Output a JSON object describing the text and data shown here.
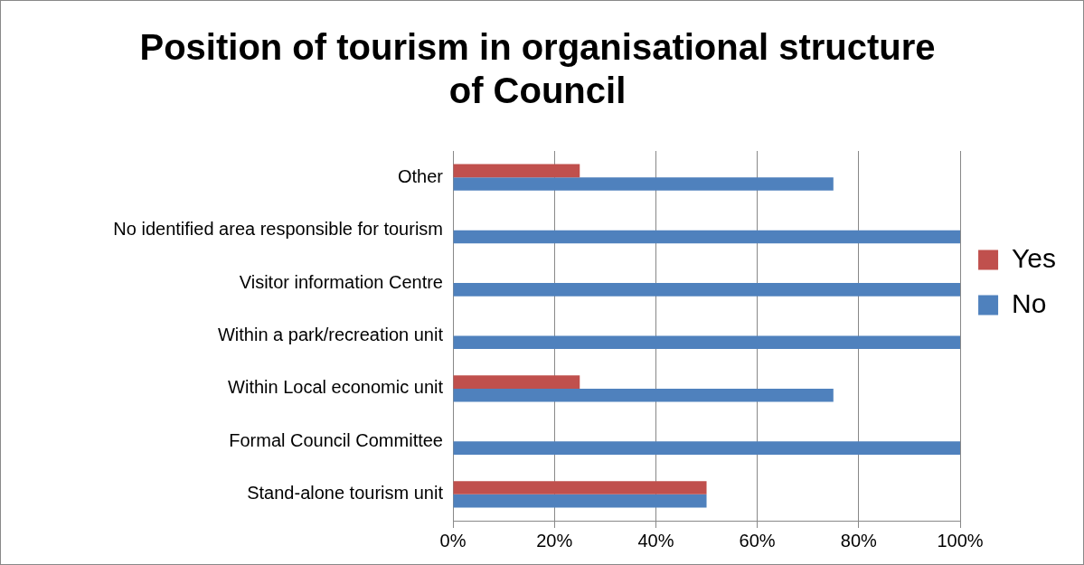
{
  "chart_data": {
    "type": "bar",
    "orientation": "horizontal",
    "title": "Position of tourism in organisational structure of Council",
    "categories": [
      "Other",
      "No identified area responsible for tourism",
      "Visitor information Centre",
      "Within a park/recreation unit",
      "Within Local economic unit",
      "Formal Council Committee",
      "Stand-alone tourism unit"
    ],
    "series": [
      {
        "name": "Yes",
        "color": "#c0504d",
        "values": [
          25,
          0,
          0,
          0,
          25,
          0,
          50
        ]
      },
      {
        "name": "No",
        "color": "#4f81bd",
        "values": [
          75,
          100,
          100,
          100,
          75,
          100,
          50
        ]
      }
    ],
    "xlim": [
      0,
      100
    ],
    "xticks": [
      {
        "value": 0,
        "label": "0%"
      },
      {
        "value": 20,
        "label": "20%"
      },
      {
        "value": 40,
        "label": "40%"
      },
      {
        "value": 60,
        "label": "60%"
      },
      {
        "value": 80,
        "label": "80%"
      },
      {
        "value": 100,
        "label": "100%"
      }
    ],
    "grid": "x",
    "legend": "right"
  }
}
